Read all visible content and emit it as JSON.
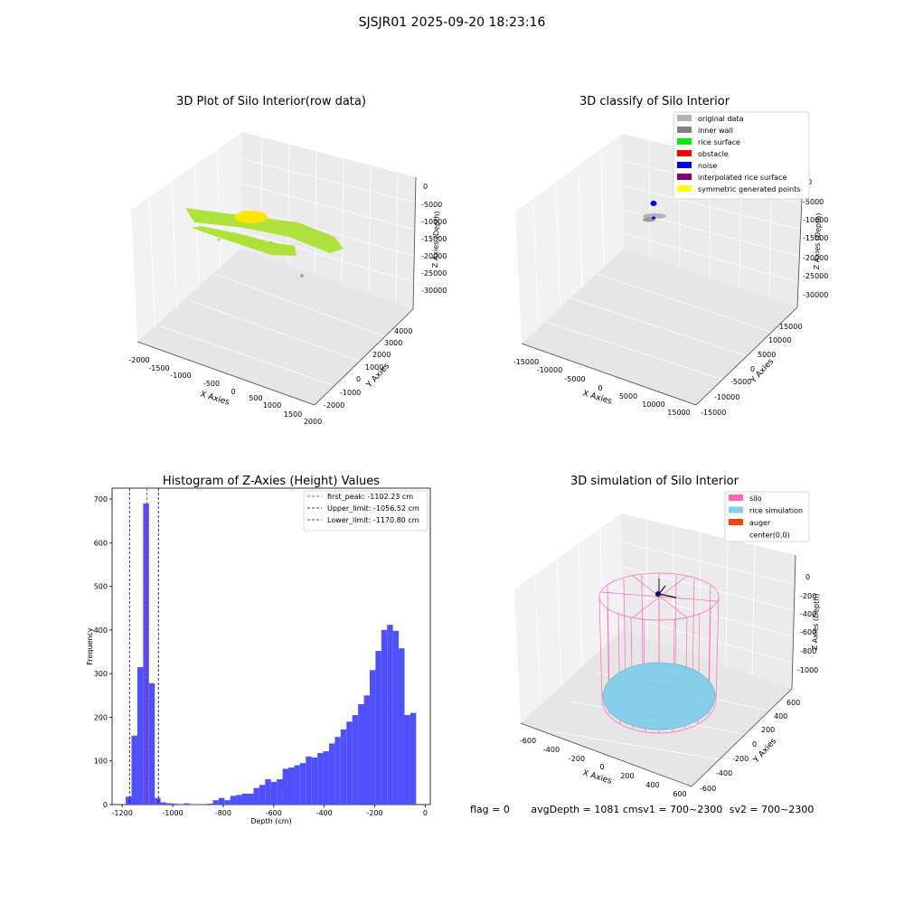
{
  "suptitle": "SJSJR01 2025-09-20 18:23:16",
  "panels": {
    "raw": {
      "title": "3D Plot of Silo Interior(row data)",
      "xlabel": "X Axies",
      "ylabel": "Y Axies",
      "zlabel": "Z Axies (Depth)",
      "xticks": [
        "-2000",
        "-1500",
        "-1000",
        "-500",
        "0",
        "500",
        "1000",
        "1500",
        "2000"
      ],
      "yticks": [
        "-2000",
        "-1000",
        "0",
        "1000",
        "2000",
        "3000",
        "4000"
      ],
      "zticks": [
        "0",
        "-5000",
        "-10000",
        "-15000",
        "-20000",
        "-25000",
        "-30000"
      ]
    },
    "classify": {
      "title": "3D classify of Silo Interior",
      "xlabel": "X Axies",
      "ylabel": "Y Axies",
      "zlabel": "Z Axies (Depth)",
      "xticks": [
        "-15000",
        "-10000",
        "-5000",
        "0",
        "5000",
        "10000",
        "15000"
      ],
      "yticks": [
        "-15000",
        "-10000",
        "-5000",
        "0",
        "5000",
        "10000",
        "15000"
      ],
      "zticks": [
        "0",
        "-5000",
        "-10000",
        "-15000",
        "-20000",
        "-25000",
        "-30000"
      ],
      "legend": [
        {
          "label": "original data",
          "color": "#b3b3b3"
        },
        {
          "label": "inner wall",
          "color": "#808080"
        },
        {
          "label": "rice surface",
          "color": "#00ee00"
        },
        {
          "label": "obstacle",
          "color": "#ff0000"
        },
        {
          "label": "noise",
          "color": "#0000ee"
        },
        {
          "label": "interpolated rice surface",
          "color": "#800080"
        },
        {
          "label": "symmetric generated points",
          "color": "#ffff00"
        }
      ]
    },
    "simulation": {
      "title": "3D simulation of Silo Interior",
      "xlabel": "X Axies",
      "ylabel": "Y Axies",
      "zlabel": "Z Axies (Depth)",
      "xticks": [
        "-600",
        "-400",
        "-200",
        "0",
        "200",
        "400",
        "600"
      ],
      "yticks": [
        "-600",
        "-400",
        "-200",
        "0",
        "200",
        "400",
        "600"
      ],
      "zticks": [
        "0",
        "-200",
        "-400",
        "-600",
        "-800",
        "-1000"
      ],
      "legend": [
        {
          "label": "silo",
          "color": "#ff69b4"
        },
        {
          "label": "rice simulation",
          "color": "#87ceeb"
        },
        {
          "label": "auger",
          "color": "#ff4500"
        },
        {
          "label": "center(0,0)",
          "color": "#ffffff"
        }
      ]
    }
  },
  "status": {
    "flag": "flag = 0",
    "avg": "avgDepth = 1081 cmsv1 = 700~2300",
    "sv2": "sv2 = 700~2300"
  },
  "chart_data": {
    "type": "bar",
    "title": "Histogram of Z-Axies (Height) Values",
    "xlabel": "Depth (cm)",
    "ylabel": "Frequency",
    "xlim": [
      -1240,
      20
    ],
    "ylim": [
      0,
      725
    ],
    "xticks": [
      -1200,
      -1000,
      -800,
      -600,
      -400,
      -200,
      0
    ],
    "yticks": [
      0,
      100,
      200,
      300,
      400,
      500,
      600,
      700
    ],
    "bar_color": "#5050ff",
    "bin_width": 23,
    "bin_left_edges": [
      -1186,
      -1163,
      -1140,
      -1117,
      -1094,
      -1071,
      -1048,
      -1025,
      -1002,
      -979,
      -956,
      -933,
      -910,
      -887,
      -864,
      -841,
      -818,
      -795,
      -772,
      -749,
      -726,
      -703,
      -680,
      -657,
      -634,
      -611,
      -588,
      -565,
      -542,
      -519,
      -496,
      -473,
      -450,
      -427,
      -404,
      -381,
      -358,
      -335,
      -312,
      -289,
      -266,
      -243,
      -220,
      -197,
      -174,
      -151,
      -128,
      -105,
      -82,
      -59,
      -36
    ],
    "values": [
      18,
      158,
      315,
      690,
      278,
      15,
      5,
      3,
      2,
      1,
      3,
      1,
      1,
      1,
      2,
      10,
      15,
      10,
      20,
      22,
      25,
      25,
      38,
      45,
      58,
      52,
      58,
      82,
      85,
      90,
      95,
      110,
      108,
      118,
      122,
      140,
      155,
      172,
      190,
      205,
      230,
      250,
      308,
      352,
      400,
      412,
      398,
      358,
      205,
      210,
      0
    ],
    "vlines": [
      {
        "label": "first_peak: -1102.23 cm",
        "x": -1102.23,
        "color": "#ff0000"
      },
      {
        "label": "Upper_limit: -1056.52 cm",
        "x": -1056.52,
        "color": "#000000"
      },
      {
        "label": "Lower_limit: -1170.80 cm",
        "x": -1170.8,
        "color": "#0000cc"
      }
    ]
  }
}
